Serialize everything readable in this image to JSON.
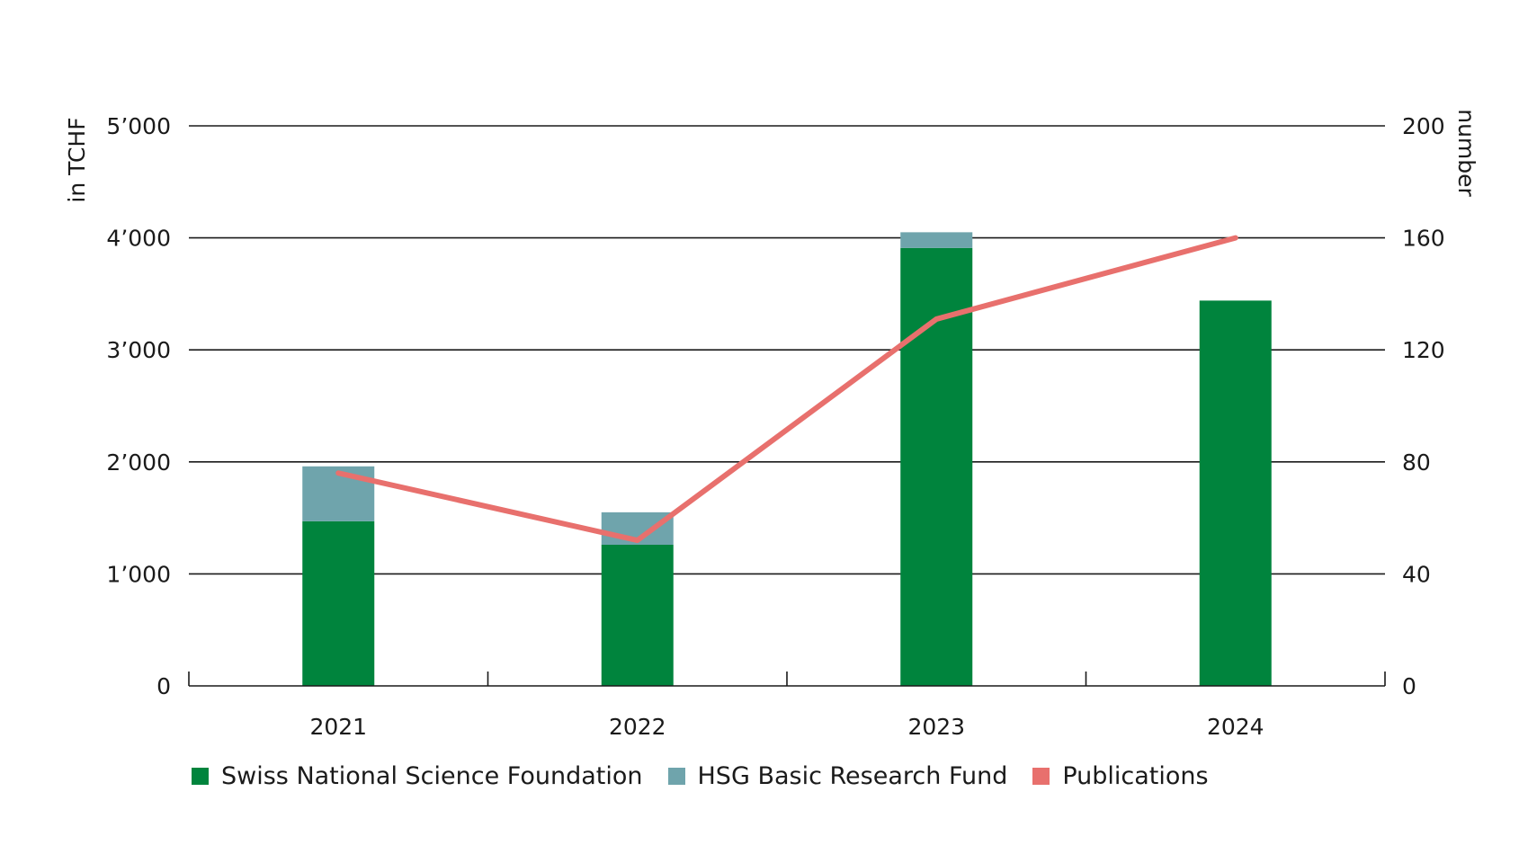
{
  "chart_data": {
    "type": "bar",
    "categories": [
      "2021",
      "2022",
      "2023",
      "2024"
    ],
    "series": [
      {
        "name": "Swiss National Science Foundation",
        "type": "bar",
        "stack": "funding",
        "axis": "left",
        "color": "#00843d",
        "values": [
          1470,
          1260,
          3910,
          3440
        ]
      },
      {
        "name": "HSG Basic Research Fund",
        "type": "bar",
        "stack": "funding",
        "axis": "left",
        "color": "#6fa4ac",
        "values": [
          490,
          290,
          140,
          0
        ]
      },
      {
        "name": "Publications",
        "type": "line",
        "axis": "right",
        "color": "#e8706d",
        "values": [
          76,
          52,
          131,
          160
        ]
      }
    ],
    "ylabel": "in TCHF",
    "y2label": "number",
    "ylim": [
      0,
      5000
    ],
    "y2lim": [
      0,
      200
    ],
    "yticks": [
      "0",
      "1’000",
      "2’000",
      "3’000",
      "4’000",
      "5’000"
    ],
    "y2ticks": [
      "0",
      "40",
      "80",
      "120",
      "160",
      "200"
    ],
    "grid": true,
    "legend_position": "bottom"
  }
}
